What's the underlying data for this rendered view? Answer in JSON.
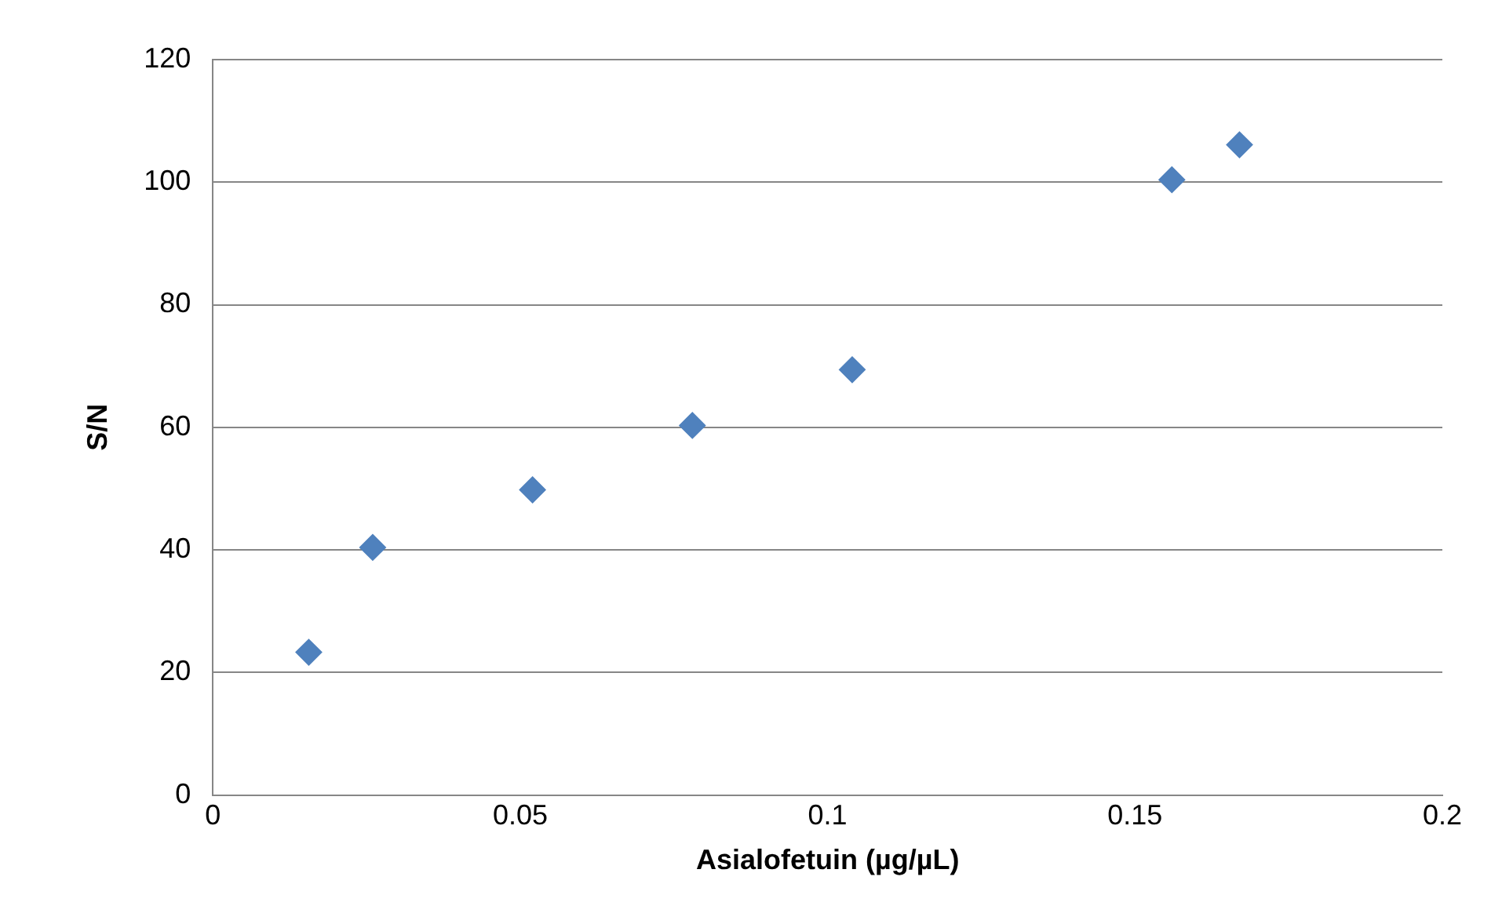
{
  "chart_data": {
    "type": "scatter",
    "xlabel": "Asialofetuin (µg/µL)",
    "ylabel": "S/N",
    "series": [
      {
        "color": "#4f81bd",
        "x": [
          0.0156,
          0.026,
          0.052,
          0.078,
          0.104,
          0.156,
          0.167
        ],
        "values": [
          23.3,
          40.4,
          49.8,
          60.3,
          69.4,
          100.4,
          106.1
        ]
      }
    ],
    "xlim": [
      0,
      0.2
    ],
    "xticks": [
      0,
      0.05,
      0.1,
      0.15,
      0.2
    ],
    "ylim": [
      0,
      120
    ],
    "yticks": [
      0,
      20,
      40,
      60,
      80,
      100,
      120
    ],
    "grid": "y",
    "legend": false,
    "marker": "diamond"
  }
}
